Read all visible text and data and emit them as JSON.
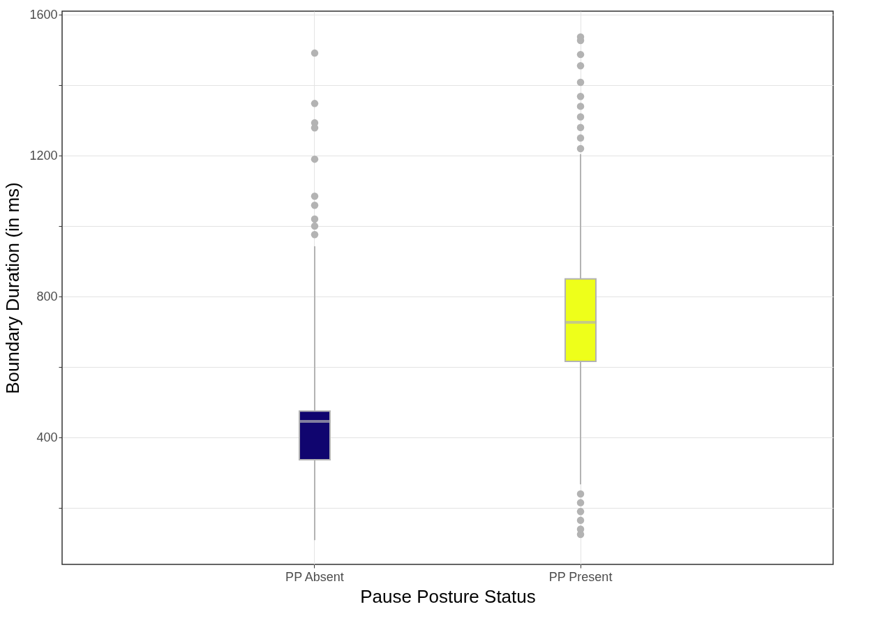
{
  "chart_data": {
    "type": "box",
    "xlabel": "Pause Posture Status",
    "ylabel": "Boundary Duration (in ms)",
    "categories": [
      "PP Absent",
      "PP Present"
    ],
    "colors": [
      "#10056f",
      "#eeff1a"
    ],
    "boxes": [
      {
        "low": 109,
        "q1": 337,
        "median": 446,
        "q3": 475,
        "high": 943,
        "outliers": [
          976,
          1000,
          1020,
          1059,
          1085,
          1190,
          1279,
          1293,
          1348,
          1491
        ]
      },
      {
        "low": 267,
        "q1": 616,
        "median": 727,
        "q3": 850,
        "high": 1204,
        "outliers": [
          125,
          140,
          165,
          190,
          215,
          240,
          1220,
          1250,
          1280,
          1310,
          1340,
          1368,
          1408,
          1455,
          1487,
          1527,
          1537
        ]
      }
    ],
    "ylim": [
      40,
      1610
    ],
    "yticks": [
      {
        "value": 200,
        "label": null
      },
      400,
      {
        "value": 600,
        "label": null
      },
      800,
      {
        "value": 1000,
        "label": null
      },
      1200,
      {
        "value": 1400,
        "label": null
      },
      1600
    ],
    "grid": true,
    "legend": false
  }
}
